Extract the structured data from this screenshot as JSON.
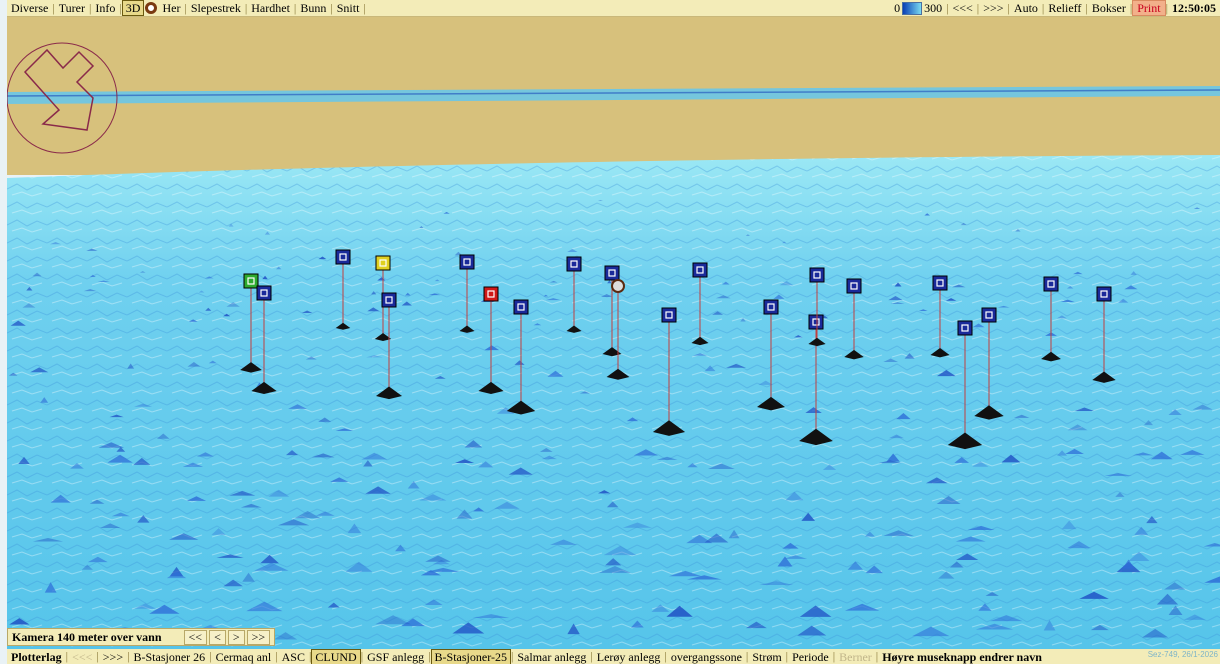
{
  "topbar": {
    "left_items": [
      "Diverse",
      "Turer",
      "Info",
      "3D"
    ],
    "her_label": "Her",
    "left_items2": [
      "Slepestrek",
      "Hardhet",
      "Bunn",
      "Snitt"
    ],
    "legend_min": "0",
    "legend_max": "300",
    "right_items": [
      "<<<",
      ">>>",
      "Auto",
      "Relieff",
      "Bokser"
    ],
    "print_label": "Print",
    "clock": "12:50:05"
  },
  "camera": {
    "label": "Kamera 140 meter over vann",
    "buttons": [
      "<<",
      "<",
      ">",
      ">>"
    ]
  },
  "bottombar": {
    "items": [
      "Plotterlag",
      "<<<",
      ">>>",
      "B-Stasjoner 26",
      "Cermaq anl",
      "ASC",
      "CLUND",
      "GSF anlegg",
      "B-Stasjoner-25",
      "Salmar anlegg",
      "Lerøy anlegg",
      "overgangssone",
      "Strøm",
      "Periode",
      "Berner",
      "Høyre museknapp endrer navn"
    ],
    "active": [
      "CLUND",
      "B-Stasjoner-25"
    ],
    "dim": [
      "<<<",
      "Berner"
    ],
    "bold": [
      "Plotterlag",
      "Høyre museknapp endrer navn"
    ]
  },
  "status": "Sez-749, 26/1-2026",
  "colors": {
    "land": "#d7c17c",
    "water_light": "#7ad9f2",
    "water_deep": "#1f4fc4",
    "marker_blue": "#1a2a9a",
    "marker_green": "#2eaa2e",
    "marker_yellow": "#e0d020",
    "marker_red": "#d01818",
    "pole": "#c04040"
  },
  "map": {
    "markers": [
      {
        "id": "m1",
        "color": "green"
      },
      {
        "id": "m2",
        "color": "blue"
      },
      {
        "id": "m3",
        "color": "blue"
      },
      {
        "id": "m4",
        "color": "yellow"
      },
      {
        "id": "m5",
        "color": "blue"
      },
      {
        "id": "m6",
        "color": "blue"
      },
      {
        "id": "m7",
        "color": "red"
      },
      {
        "id": "m8",
        "color": "blue"
      },
      {
        "id": "m9",
        "color": "blue"
      },
      {
        "id": "m10",
        "color": "blue"
      },
      {
        "id": "m11",
        "color": "ring"
      },
      {
        "id": "m12",
        "color": "blue"
      },
      {
        "id": "m13",
        "color": "blue"
      },
      {
        "id": "m14",
        "color": "blue"
      },
      {
        "id": "m15",
        "color": "blue"
      },
      {
        "id": "m16",
        "color": "blue"
      },
      {
        "id": "m17",
        "color": "blue"
      },
      {
        "id": "m18",
        "color": "blue"
      },
      {
        "id": "m19",
        "color": "blue"
      },
      {
        "id": "m20",
        "color": "blue"
      },
      {
        "id": "m21",
        "color": "blue"
      },
      {
        "id": "m22",
        "color": "blue"
      }
    ]
  }
}
